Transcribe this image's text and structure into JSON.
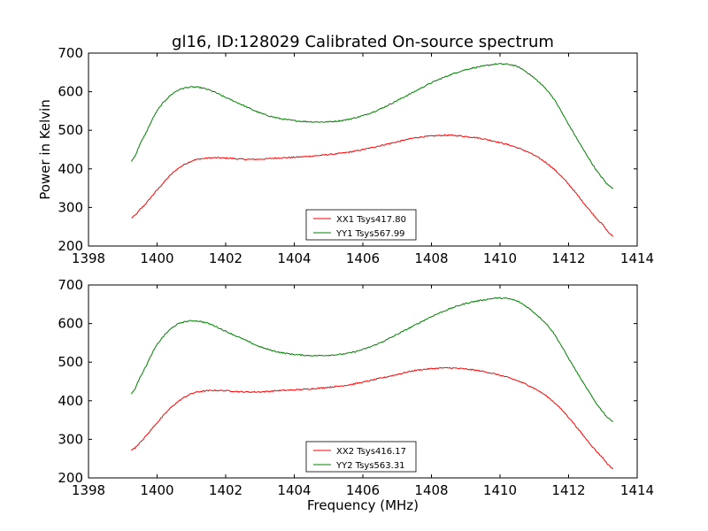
{
  "title": "gl16, ID:128029 Calibrated On-source spectrum",
  "chart_data": [
    {
      "type": "line",
      "ylabel": "Power in Kelvin",
      "xlabel": "",
      "xlim": [
        1398,
        1414
      ],
      "ylim": [
        200,
        700
      ],
      "xticks": [
        1398,
        1400,
        1402,
        1404,
        1406,
        1408,
        1410,
        1412,
        1414
      ],
      "yticks": [
        200,
        300,
        400,
        500,
        600,
        700
      ],
      "grid": false,
      "legend": "lower-center",
      "series": [
        {
          "name": "XX1 Tsys417.80",
          "color": "#ff0000",
          "x": [
            1399.25,
            1399.5,
            1400.0,
            1400.5,
            1401.0,
            1401.5,
            1402.0,
            1402.5,
            1403.0,
            1403.5,
            1404.0,
            1404.5,
            1405.0,
            1405.5,
            1406.0,
            1406.5,
            1407.0,
            1407.5,
            1408.0,
            1408.5,
            1409.0,
            1409.5,
            1410.0,
            1410.5,
            1411.0,
            1411.5,
            1412.0,
            1412.5,
            1413.0,
            1413.3
          ],
          "values": [
            273,
            295,
            345,
            393,
            420,
            428,
            428,
            425,
            425,
            428,
            430,
            433,
            437,
            442,
            450,
            460,
            470,
            480,
            485,
            487,
            484,
            478,
            468,
            455,
            435,
            405,
            360,
            305,
            255,
            225
          ]
        },
        {
          "name": "YY1 Tsys567.99",
          "color": "#008000",
          "x": [
            1399.25,
            1399.5,
            1400.0,
            1400.5,
            1401.0,
            1401.5,
            1402.0,
            1402.5,
            1403.0,
            1403.5,
            1404.0,
            1404.5,
            1405.0,
            1405.5,
            1406.0,
            1406.5,
            1407.0,
            1407.5,
            1408.0,
            1408.5,
            1409.0,
            1409.5,
            1410.0,
            1410.5,
            1411.0,
            1411.5,
            1412.0,
            1412.5,
            1413.0,
            1413.3
          ],
          "values": [
            420,
            465,
            550,
            598,
            612,
            605,
            585,
            565,
            545,
            532,
            525,
            522,
            522,
            527,
            538,
            555,
            577,
            600,
            623,
            642,
            657,
            666,
            672,
            665,
            635,
            590,
            515,
            440,
            375,
            350
          ]
        }
      ]
    },
    {
      "type": "line",
      "ylabel": "",
      "xlabel": "Frequency (MHz)",
      "xlim": [
        1398,
        1414
      ],
      "ylim": [
        200,
        700
      ],
      "xticks": [
        1398,
        1400,
        1402,
        1404,
        1406,
        1408,
        1410,
        1412,
        1414
      ],
      "yticks": [
        200,
        300,
        400,
        500,
        600,
        700
      ],
      "grid": false,
      "legend": "lower-center",
      "series": [
        {
          "name": "XX2 Tsys416.17",
          "color": "#ff0000",
          "x": [
            1399.25,
            1399.5,
            1400.0,
            1400.5,
            1401.0,
            1401.5,
            1402.0,
            1402.5,
            1403.0,
            1403.5,
            1404.0,
            1404.5,
            1405.0,
            1405.5,
            1406.0,
            1406.5,
            1407.0,
            1407.5,
            1408.0,
            1408.5,
            1409.0,
            1409.5,
            1410.0,
            1410.5,
            1411.0,
            1411.5,
            1412.0,
            1412.5,
            1413.0,
            1413.3
          ],
          "values": [
            272,
            293,
            343,
            390,
            418,
            426,
            426,
            423,
            423,
            426,
            428,
            431,
            435,
            440,
            448,
            458,
            468,
            478,
            483,
            485,
            482,
            476,
            466,
            452,
            432,
            402,
            357,
            302,
            252,
            224
          ]
        },
        {
          "name": "YY2 Tsys563.31",
          "color": "#008000",
          "x": [
            1399.25,
            1399.5,
            1400.0,
            1400.5,
            1401.0,
            1401.5,
            1402.0,
            1402.5,
            1403.0,
            1403.5,
            1404.0,
            1404.5,
            1405.0,
            1405.5,
            1406.0,
            1406.5,
            1407.0,
            1407.5,
            1408.0,
            1408.5,
            1409.0,
            1409.5,
            1410.0,
            1410.5,
            1411.0,
            1411.5,
            1412.0,
            1412.5,
            1413.0,
            1413.3
          ],
          "values": [
            418,
            462,
            545,
            593,
            607,
            600,
            580,
            560,
            540,
            527,
            520,
            517,
            518,
            522,
            533,
            550,
            572,
            595,
            618,
            637,
            652,
            661,
            666,
            658,
            628,
            583,
            510,
            436,
            372,
            347
          ]
        }
      ]
    }
  ]
}
